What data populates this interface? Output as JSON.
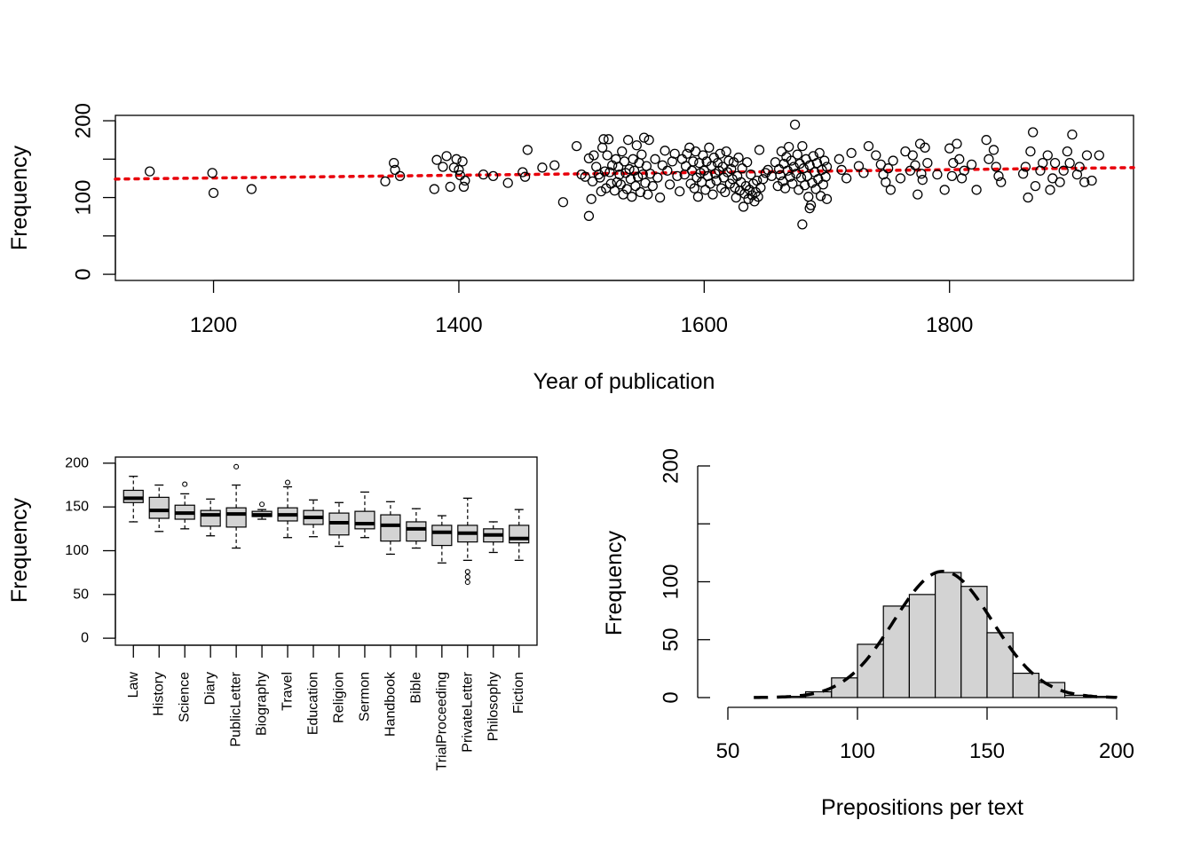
{
  "chart_data": [
    {
      "type": "scatter",
      "title": "",
      "xlabel": "Year of publication",
      "ylabel": "Frequency",
      "xlim": [
        1120,
        1950
      ],
      "ylim": [
        -8,
        207
      ],
      "xticks": [
        "1200",
        "1400",
        "1600",
        "1800"
      ],
      "yticks": [
        "0",
        "100",
        "200"
      ],
      "trend": {
        "style": "dotted",
        "color": "#e8000b",
        "from": [
          1120,
          124
        ],
        "to": [
          1950,
          139
        ]
      },
      "points": [
        [
          1148,
          134
        ],
        [
          1199,
          132
        ],
        [
          1200,
          106
        ],
        [
          1231,
          111
        ],
        [
          1340,
          121
        ],
        [
          1347,
          145
        ],
        [
          1348,
          136
        ],
        [
          1352,
          128
        ],
        [
          1380,
          111
        ],
        [
          1382,
          149
        ],
        [
          1387,
          140
        ],
        [
          1390,
          154
        ],
        [
          1393,
          114
        ],
        [
          1396,
          139
        ],
        [
          1398,
          150
        ],
        [
          1400,
          136
        ],
        [
          1401,
          129
        ],
        [
          1403,
          147
        ],
        [
          1404,
          114
        ],
        [
          1405,
          122
        ],
        [
          1420,
          130
        ],
        [
          1428,
          128
        ],
        [
          1440,
          119
        ],
        [
          1452,
          133
        ],
        [
          1454,
          127
        ],
        [
          1456,
          162
        ],
        [
          1468,
          139
        ],
        [
          1478,
          142
        ],
        [
          1485,
          94
        ],
        [
          1496,
          167
        ],
        [
          1500,
          130
        ],
        [
          1503,
          127
        ],
        [
          1506,
          76
        ],
        [
          1506,
          151
        ],
        [
          1508,
          98
        ],
        [
          1509,
          121
        ],
        [
          1510,
          155
        ],
        [
          1512,
          140
        ],
        [
          1514,
          130
        ],
        [
          1515,
          126
        ],
        [
          1516,
          108
        ],
        [
          1517,
          165
        ],
        [
          1518,
          176
        ],
        [
          1519,
          134
        ],
        [
          1520,
          112
        ],
        [
          1521,
          155
        ],
        [
          1522,
          176
        ],
        [
          1523,
          133
        ],
        [
          1524,
          118
        ],
        [
          1525,
          142
        ],
        [
          1527,
          109
        ],
        [
          1528,
          150
        ],
        [
          1529,
          120
        ],
        [
          1530,
          140
        ],
        [
          1531,
          130
        ],
        [
          1532,
          117
        ],
        [
          1533,
          160
        ],
        [
          1534,
          104
        ],
        [
          1535,
          147
        ],
        [
          1536,
          132
        ],
        [
          1537,
          111
        ],
        [
          1538,
          175
        ],
        [
          1539,
          137
        ],
        [
          1540,
          124
        ],
        [
          1541,
          101
        ],
        [
          1542,
          150
        ],
        [
          1543,
          135
        ],
        [
          1544,
          115
        ],
        [
          1545,
          168
        ],
        [
          1546,
          127
        ],
        [
          1547,
          145
        ],
        [
          1548,
          107
        ],
        [
          1549,
          156
        ],
        [
          1550,
          130
        ],
        [
          1551,
          178
        ],
        [
          1552,
          119
        ],
        [
          1553,
          141
        ],
        [
          1554,
          104
        ],
        [
          1555,
          175
        ],
        [
          1556,
          131
        ],
        [
          1558,
          115
        ],
        [
          1560,
          150
        ],
        [
          1562,
          126
        ],
        [
          1564,
          100
        ],
        [
          1566,
          142
        ],
        [
          1568,
          161
        ],
        [
          1570,
          135
        ],
        [
          1572,
          117
        ],
        [
          1574,
          147
        ],
        [
          1576,
          157
        ],
        [
          1578,
          128
        ],
        [
          1580,
          108
        ],
        [
          1582,
          150
        ],
        [
          1584,
          130
        ],
        [
          1585,
          141
        ],
        [
          1586,
          157
        ],
        [
          1588,
          165
        ],
        [
          1589,
          118
        ],
        [
          1590,
          135
        ],
        [
          1591,
          147
        ],
        [
          1592,
          112
        ],
        [
          1593,
          160
        ],
        [
          1594,
          126
        ],
        [
          1595,
          101
        ],
        [
          1596,
          145
        ],
        [
          1597,
          132
        ],
        [
          1598,
          120
        ],
        [
          1599,
          155
        ],
        [
          1600,
          135
        ],
        [
          1601,
          110
        ],
        [
          1602,
          147
        ],
        [
          1603,
          128
        ],
        [
          1604,
          165
        ],
        [
          1605,
          118
        ],
        [
          1606,
          141
        ],
        [
          1607,
          104
        ],
        [
          1608,
          152
        ],
        [
          1609,
          131
        ],
        [
          1610,
          122
        ],
        [
          1611,
          145
        ],
        [
          1612,
          135
        ],
        [
          1613,
          157
        ],
        [
          1614,
          112
        ],
        [
          1615,
          140
        ],
        [
          1616,
          126
        ],
        [
          1617,
          107
        ],
        [
          1618,
          160
        ],
        [
          1619,
          133
        ],
        [
          1620,
          148
        ],
        [
          1621,
          118
        ],
        [
          1622,
          137
        ],
        [
          1623,
          124
        ],
        [
          1624,
          146
        ],
        [
          1625,
          113
        ],
        [
          1626,
          100
        ],
        [
          1627,
          128
        ],
        [
          1628,
          152
        ],
        [
          1629,
          109
        ],
        [
          1630,
          120
        ],
        [
          1631,
          138
        ],
        [
          1632,
          88
        ],
        [
          1633,
          105
        ],
        [
          1634,
          115
        ],
        [
          1635,
          146
        ],
        [
          1636,
          98
        ],
        [
          1637,
          110
        ],
        [
          1638,
          130
        ],
        [
          1639,
          103
        ],
        [
          1640,
          118
        ],
        [
          1641,
          95
        ],
        [
          1642,
          107
        ],
        [
          1643,
          122
        ],
        [
          1644,
          101
        ],
        [
          1645,
          162
        ],
        [
          1646,
          113
        ],
        [
          1648,
          124
        ],
        [
          1650,
          132
        ],
        [
          1652,
          136
        ],
        [
          1655,
          128
        ],
        [
          1658,
          146
        ],
        [
          1660,
          115
        ],
        [
          1661,
          137
        ],
        [
          1662,
          129
        ],
        [
          1663,
          160
        ],
        [
          1664,
          121
        ],
        [
          1665,
          144
        ],
        [
          1666,
          112
        ],
        [
          1667,
          153
        ],
        [
          1668,
          135
        ],
        [
          1669,
          166
        ],
        [
          1670,
          127
        ],
        [
          1671,
          148
        ],
        [
          1672,
          118
        ],
        [
          1673,
          140
        ],
        [
          1674,
          195
        ],
        [
          1675,
          131
        ],
        [
          1676,
          156
        ],
        [
          1677,
          110
        ],
        [
          1678,
          144
        ],
        [
          1679,
          126
        ],
        [
          1680,
          167
        ],
        [
          1681,
          138
        ],
        [
          1682,
          116
        ],
        [
          1683,
          150
        ],
        [
          1684,
          128
        ],
        [
          1685,
          101
        ],
        [
          1686,
          142
        ],
        [
          1687,
          90
        ],
        [
          1688,
          119
        ],
        [
          1689,
          154
        ],
        [
          1690,
          133
        ],
        [
          1691,
          111
        ],
        [
          1692,
          145
        ],
        [
          1693,
          124
        ],
        [
          1694,
          158
        ],
        [
          1695,
          102
        ],
        [
          1696,
          136
        ],
        [
          1697,
          117
        ],
        [
          1698,
          148
        ],
        [
          1699,
          127
        ],
        [
          1700,
          140
        ],
        [
          1680,
          65
        ],
        [
          1686,
          86
        ],
        [
          1700,
          98
        ],
        [
          1710,
          150
        ],
        [
          1712,
          136
        ],
        [
          1716,
          125
        ],
        [
          1720,
          158
        ],
        [
          1726,
          141
        ],
        [
          1730,
          132
        ],
        [
          1734,
          167
        ],
        [
          1740,
          155
        ],
        [
          1744,
          143
        ],
        [
          1746,
          130
        ],
        [
          1748,
          120
        ],
        [
          1750,
          138
        ],
        [
          1752,
          110
        ],
        [
          1754,
          148
        ],
        [
          1760,
          125
        ],
        [
          1764,
          160
        ],
        [
          1768,
          135
        ],
        [
          1770,
          155
        ],
        [
          1772,
          142
        ],
        [
          1774,
          104
        ],
        [
          1776,
          170
        ],
        [
          1777,
          131
        ],
        [
          1778,
          123
        ],
        [
          1780,
          165
        ],
        [
          1782,
          145
        ],
        [
          1790,
          130
        ],
        [
          1796,
          110
        ],
        [
          1800,
          164
        ],
        [
          1802,
          128
        ],
        [
          1803,
          145
        ],
        [
          1806,
          170
        ],
        [
          1808,
          150
        ],
        [
          1810,
          125
        ],
        [
          1812,
          135
        ],
        [
          1818,
          143
        ],
        [
          1822,
          110
        ],
        [
          1830,
          175
        ],
        [
          1832,
          150
        ],
        [
          1836,
          162
        ],
        [
          1838,
          140
        ],
        [
          1840,
          128
        ],
        [
          1842,
          120
        ],
        [
          1860,
          131
        ],
        [
          1862,
          140
        ],
        [
          1864,
          100
        ],
        [
          1866,
          160
        ],
        [
          1868,
          185
        ],
        [
          1870,
          115
        ],
        [
          1874,
          135
        ],
        [
          1876,
          145
        ],
        [
          1880,
          155
        ],
        [
          1882,
          110
        ],
        [
          1884,
          125
        ],
        [
          1886,
          145
        ],
        [
          1890,
          120
        ],
        [
          1893,
          135
        ],
        [
          1896,
          160
        ],
        [
          1898,
          145
        ],
        [
          1900,
          182
        ],
        [
          1904,
          130
        ],
        [
          1906,
          140
        ],
        [
          1910,
          120
        ],
        [
          1912,
          155
        ],
        [
          1916,
          122
        ],
        [
          1922,
          155
        ]
      ]
    },
    {
      "type": "box",
      "title": "",
      "xlabel": "",
      "ylabel": "Frequency",
      "ylim": [
        -8,
        207
      ],
      "yticks": [
        "0",
        "50",
        "100",
        "150",
        "200"
      ],
      "categories": [
        "Law",
        "History",
        "Science",
        "Diary",
        "PublicLetter",
        "Biography",
        "Travel",
        "Education",
        "Religion",
        "Sermon",
        "Handbook",
        "Bible",
        "TrialProceeding",
        "PrivateLetter",
        "Philosophy",
        "Fiction"
      ],
      "boxes": [
        {
          "min": 133,
          "q1": 155,
          "median": 160,
          "q3": 169,
          "max": 185,
          "outliers": []
        },
        {
          "min": 122,
          "q1": 137,
          "median": 146,
          "q3": 161,
          "max": 175,
          "outliers": []
        },
        {
          "min": 125,
          "q1": 136,
          "median": 143,
          "q3": 152,
          "max": 165,
          "outliers": [
            176
          ]
        },
        {
          "min": 117,
          "q1": 128,
          "median": 141,
          "q3": 146,
          "max": 159,
          "outliers": []
        },
        {
          "min": 103,
          "q1": 127,
          "median": 142,
          "q3": 149,
          "max": 175,
          "outliers": [
            196
          ]
        },
        {
          "min": 136,
          "q1": 139,
          "median": 141,
          "q3": 145,
          "max": 147,
          "outliers": [
            153
          ]
        },
        {
          "min": 115,
          "q1": 134,
          "median": 141,
          "q3": 149,
          "max": 173,
          "outliers": [
            178
          ]
        },
        {
          "min": 116,
          "q1": 130,
          "median": 138,
          "q3": 146,
          "max": 158,
          "outliers": []
        },
        {
          "min": 105,
          "q1": 118,
          "median": 132,
          "q3": 143,
          "max": 155,
          "outliers": []
        },
        {
          "min": 115,
          "q1": 125,
          "median": 131,
          "q3": 145,
          "max": 167,
          "outliers": []
        },
        {
          "min": 96,
          "q1": 111,
          "median": 129,
          "q3": 141,
          "max": 156,
          "outliers": []
        },
        {
          "min": 103,
          "q1": 111,
          "median": 125,
          "q3": 133,
          "max": 148,
          "outliers": []
        },
        {
          "min": 86,
          "q1": 106,
          "median": 121,
          "q3": 129,
          "max": 140,
          "outliers": []
        },
        {
          "min": 89,
          "q1": 110,
          "median": 120,
          "q3": 129,
          "max": 160,
          "outliers": [
            64,
            70,
            76
          ]
        },
        {
          "min": 98,
          "q1": 110,
          "median": 118,
          "q3": 125,
          "max": 133,
          "outliers": []
        },
        {
          "min": 89,
          "q1": 109,
          "median": 114,
          "q3": 129,
          "max": 147,
          "outliers": []
        }
      ]
    },
    {
      "type": "histogram",
      "title": "",
      "xlabel": "Prepositions per text",
      "ylabel": "Frequency",
      "xlim": [
        50,
        200
      ],
      "ylim": [
        0,
        200
      ],
      "xticks": [
        "50",
        "100",
        "150",
        "200"
      ],
      "yticks": [
        "0",
        "50",
        "100",
        "200"
      ],
      "bin_width": 10,
      "bins": [
        {
          "from": 60,
          "to": 70,
          "count": 0
        },
        {
          "from": 70,
          "to": 80,
          "count": 1
        },
        {
          "from": 80,
          "to": 90,
          "count": 5
        },
        {
          "from": 90,
          "to": 100,
          "count": 17
        },
        {
          "from": 100,
          "to": 110,
          "count": 46
        },
        {
          "from": 110,
          "to": 120,
          "count": 79
        },
        {
          "from": 120,
          "to": 130,
          "count": 89
        },
        {
          "from": 130,
          "to": 140,
          "count": 108
        },
        {
          "from": 140,
          "to": 150,
          "count": 96
        },
        {
          "from": 150,
          "to": 160,
          "count": 56
        },
        {
          "from": 160,
          "to": 170,
          "count": 21
        },
        {
          "from": 170,
          "to": 180,
          "count": 13
        },
        {
          "from": 180,
          "to": 190,
          "count": 2
        },
        {
          "from": 190,
          "to": 200,
          "count": 1
        }
      ],
      "density_curve": {
        "style": "dashed",
        "color": "#000000",
        "mean": 133,
        "peak": 109,
        "sd": 19
      }
    }
  ]
}
